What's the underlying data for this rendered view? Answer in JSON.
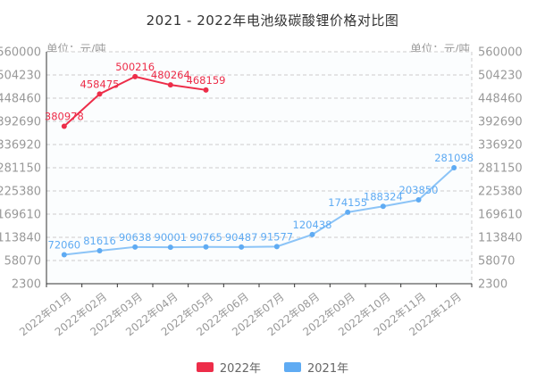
{
  "chart_data": {
    "type": "line",
    "title": "2021 - 2022年电池级碳酸锂价格对比图",
    "unit_label_left": "单位：元/吨",
    "unit_label_right": "单位：元/吨",
    "categories": [
      "2022年01月",
      "2022年02月",
      "2022年03月",
      "2022年04月",
      "2022年05月",
      "2022年06月",
      "2022年07月",
      "2022年08月",
      "2022年09月",
      "2022年10月",
      "2022年11月",
      "2022年12月"
    ],
    "y_ticks": [
      2300,
      58070,
      113840,
      169610,
      225380,
      281150,
      336920,
      392690,
      448460,
      504230,
      560000
    ],
    "ylim": [
      2300,
      560000
    ],
    "grid": "horizontal-dashed",
    "legend_position": "bottom",
    "x_label_rotation": -38,
    "series": [
      {
        "name": "2022年",
        "color": "#ed2d49",
        "line_color": "#ed2d49",
        "values": [
          380978,
          458475,
          500216,
          480264,
          468159
        ]
      },
      {
        "name": "2021年",
        "color": "#5fabf3",
        "line_color": "#8cc4f7",
        "values": [
          72060,
          81616,
          90638,
          90001,
          90765,
          90487,
          91577,
          120438,
          174155,
          188324,
          203850,
          281098
        ]
      }
    ]
  },
  "legend": {
    "items": [
      {
        "label": "2022年",
        "color": "#ed2d49"
      },
      {
        "label": "2021年",
        "color": "#5fabf3"
      }
    ]
  },
  "colors": {
    "grid": "#cccccc",
    "axis": "#333333",
    "tick_text": "#999999",
    "plot_bg": "#fbfdfe"
  }
}
